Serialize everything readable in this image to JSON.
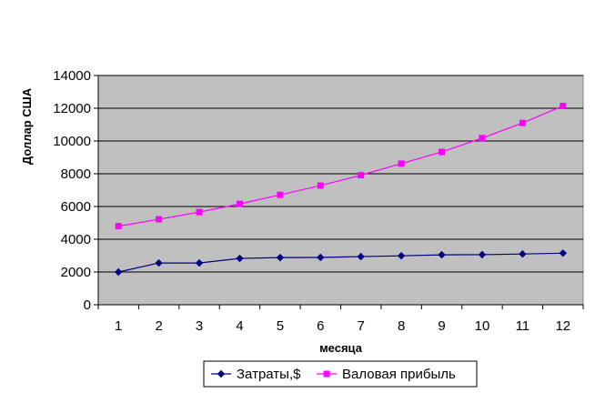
{
  "chart_data": {
    "type": "line",
    "title": "",
    "xlabel": "месяца",
    "ylabel": "Доллар США",
    "categories": [
      "1",
      "2",
      "3",
      "4",
      "5",
      "6",
      "7",
      "8",
      "9",
      "10",
      "11",
      "12"
    ],
    "ylim": [
      0,
      14000
    ],
    "yticks": [
      0,
      2000,
      4000,
      6000,
      8000,
      10000,
      12000,
      14000
    ],
    "grid": true,
    "legend_position": "bottom",
    "plot_background": "#c0c0c0",
    "series": [
      {
        "name": "Затраты,$",
        "color": "#000080",
        "marker": "diamond",
        "values": [
          2000,
          2550,
          2550,
          2830,
          2880,
          2890,
          2940,
          2990,
          3050,
          3060,
          3100,
          3150
        ]
      },
      {
        "name": "Валовая прибыль",
        "color": "#ff00ff",
        "marker": "square",
        "values": [
          4800,
          5220,
          5660,
          6160,
          6710,
          7280,
          7910,
          8620,
          9330,
          10180,
          11100,
          12140
        ]
      }
    ]
  }
}
